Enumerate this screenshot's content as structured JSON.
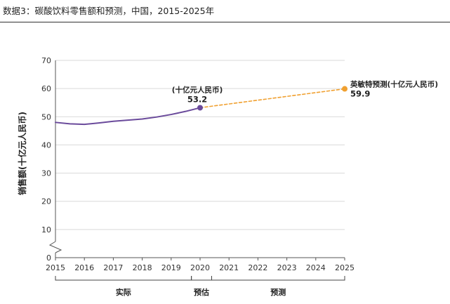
{
  "title": "数据3：碳酸饮料零售额和预测，中国，2015-2025年",
  "chart_data": {
    "type": "line",
    "ylabel": "销售额(十亿元人民币)",
    "ylim": [
      0,
      70
    ],
    "yticks": [
      0,
      10,
      20,
      30,
      40,
      50,
      60,
      70
    ],
    "x_ticks": [
      "2015",
      "2016",
      "2017",
      "2018",
      "2019",
      "2020",
      "2021",
      "2022",
      "2023",
      "2024",
      "2025"
    ],
    "series": [
      {
        "style": "solid",
        "color": "#6a4a9b",
        "x": [
          2015,
          2015.5,
          2016,
          2016.5,
          2017,
          2017.5,
          2018,
          2018.5,
          2019,
          2019.5,
          2020
        ],
        "y": [
          48.0,
          47.5,
          47.3,
          47.8,
          48.4,
          48.8,
          49.2,
          49.9,
          50.8,
          51.9,
          53.2
        ]
      },
      {
        "style": "dashed",
        "color": "#f0a030",
        "x": [
          2020,
          2025
        ],
        "y": [
          53.2,
          59.9
        ]
      }
    ],
    "annotations": [
      {
        "unit": "(十亿元人民币)",
        "value": "53.2"
      },
      {
        "unit": "英敏特预测(十亿元人民币)",
        "value": "59.9"
      }
    ],
    "periods": [
      {
        "label": "实际",
        "color": "#222222"
      },
      {
        "label": "预估",
        "color": "#cc2222"
      },
      {
        "label": "预测",
        "color": "#222222"
      }
    ]
  }
}
